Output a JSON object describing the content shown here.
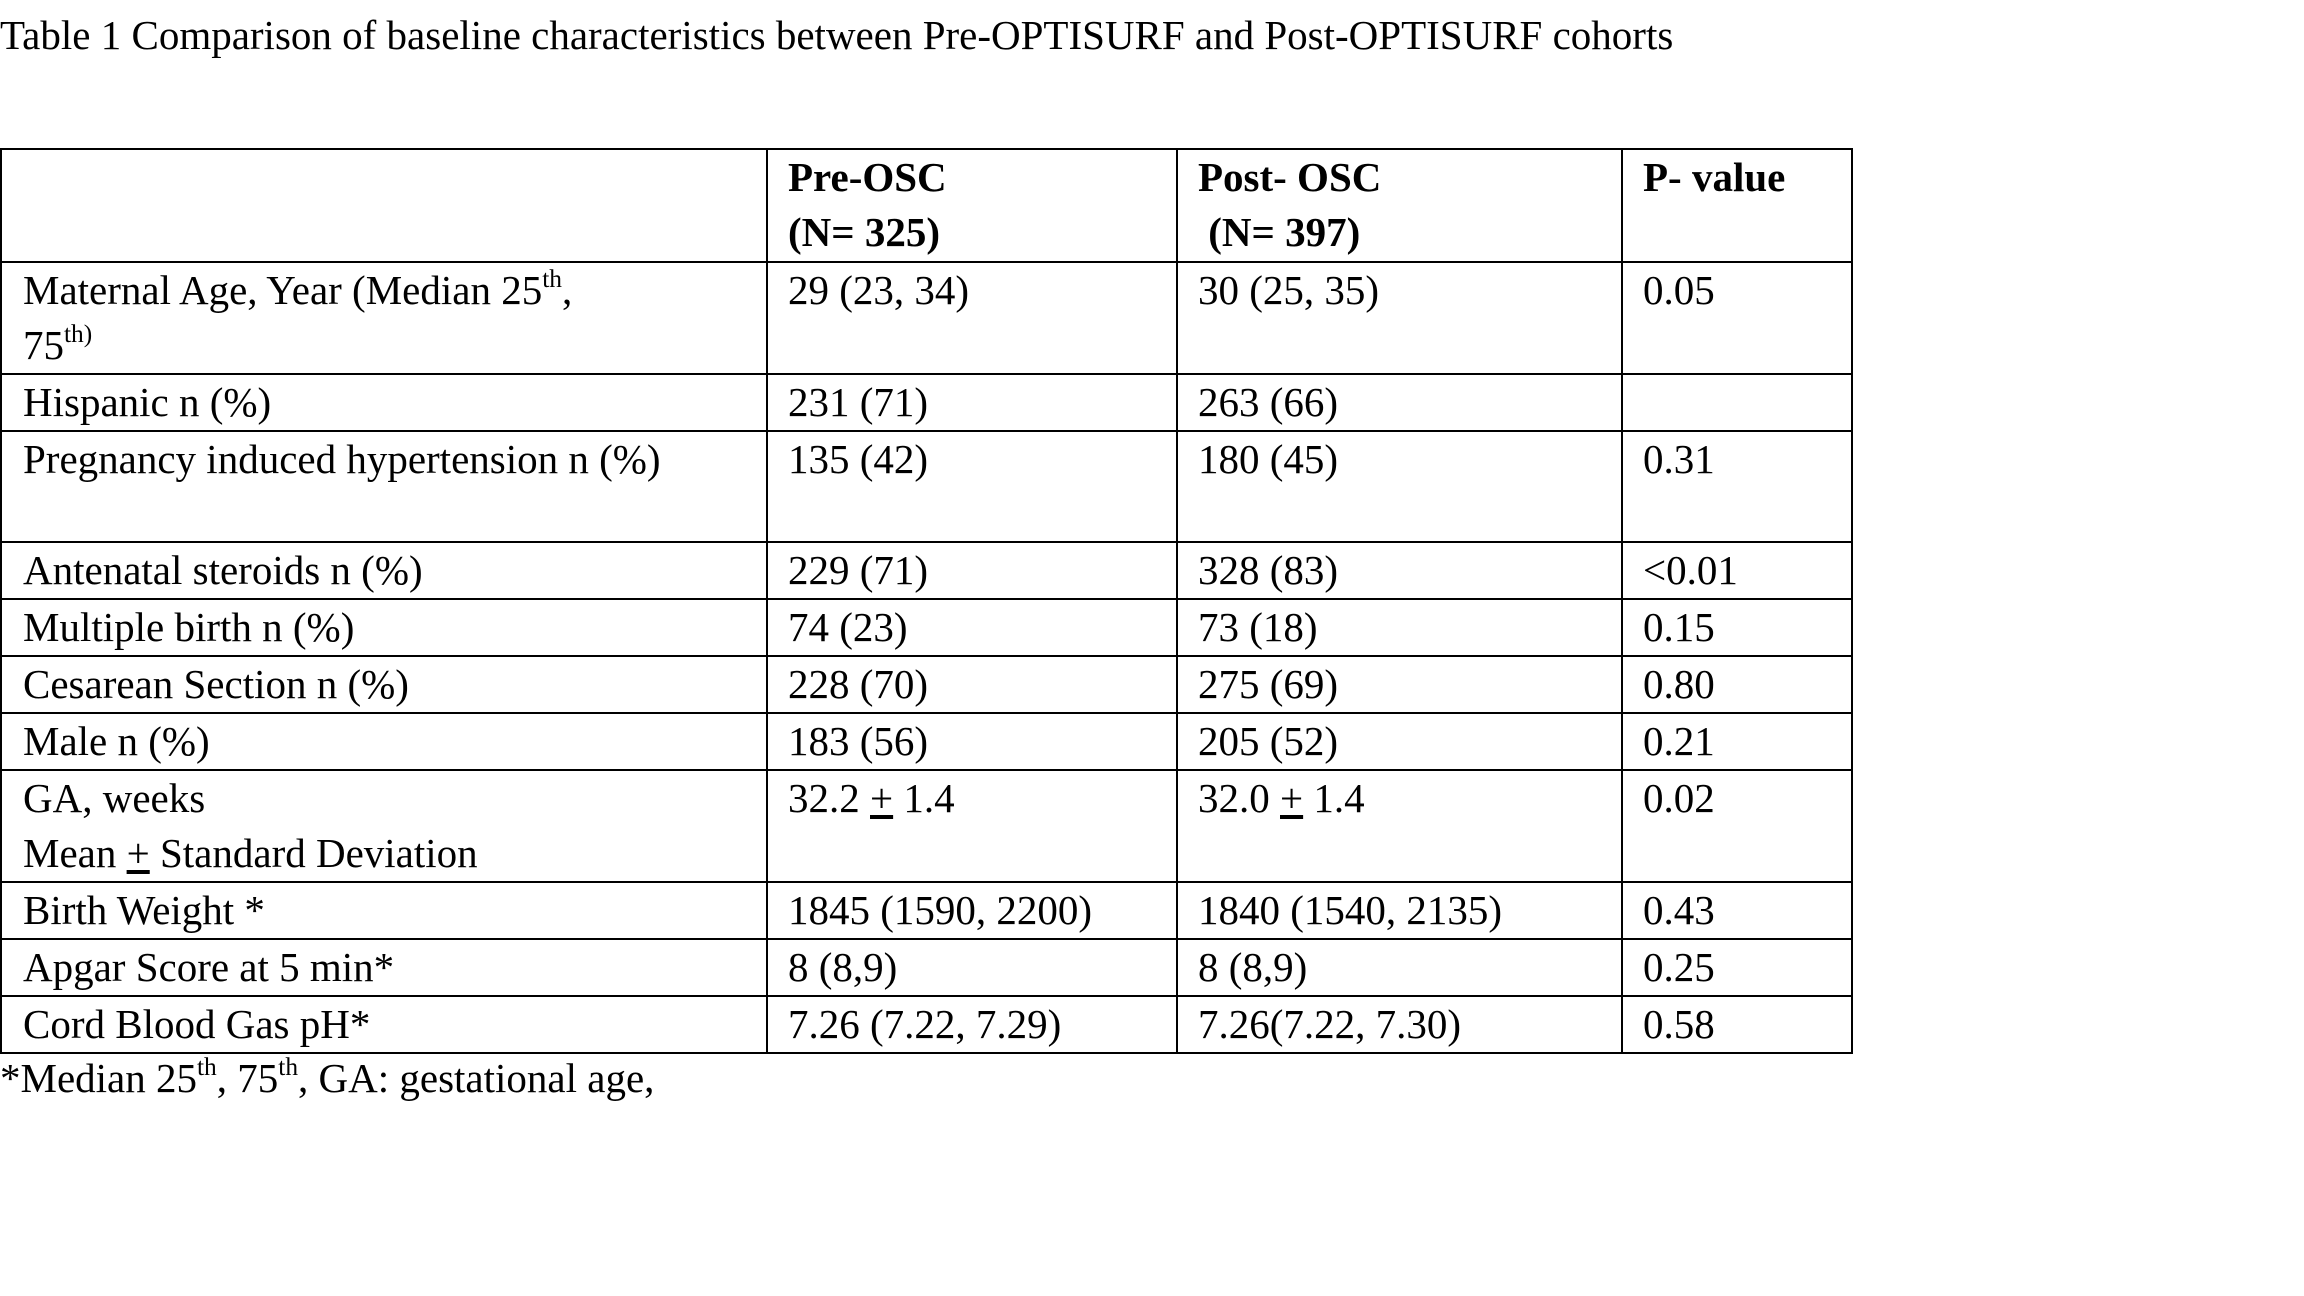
{
  "caption": "Table 1 Comparison of baseline characteristics between Pre-OPTISURF and Post-OPTISURF cohorts",
  "header": {
    "blank": "",
    "pre_line1": "Pre-OSC",
    "pre_line2": "(N= 325)",
    "post_line1": "Post- OSC",
    "post_line2": " (N= 397)",
    "pvalue": "P- value"
  },
  "rows": [
    {
      "label_a": "Maternal Age, Year (Median 25",
      "label_sup1": "th",
      "label_b": ",",
      "label_c": "75",
      "label_sup2": "th)",
      "pre": "29 (23, 34)",
      "post": "30 (25, 35)",
      "p": "0.05"
    },
    {
      "label": "Hispanic n (%)",
      "pre": "231 (71)",
      "post": "263 (66)",
      "p": ""
    },
    {
      "label": "Pregnancy induced hypertension n (%)",
      "pre": "135 (42)",
      "post": "180 (45)",
      "p": "0.31"
    },
    {
      "label": "Antenatal steroids n (%)",
      "pre": "229 (71)",
      "post": "328 (83)",
      "p": "<0.01"
    },
    {
      "label": "Multiple birth n (%)",
      "pre": "74 (23)",
      "post": "73 (18)",
      "p": "0.15"
    },
    {
      "label": "Cesarean Section n (%)",
      "pre": "228 (70)",
      "post": "275 (69)",
      "p": "0.80"
    },
    {
      "label": "Male n (%)",
      "pre": "183 (56)",
      "post": "205 (52)",
      "p": "0.21"
    },
    {
      "label_line1": "GA, weeks",
      "label_line2_a": "Mean ",
      "label_line2_pm": "+",
      "label_line2_b": " Standard Deviation",
      "pre_a": "32.2 ",
      "pre_pm": "+",
      "pre_b": " 1.4",
      "post_a": "32.0 ",
      "post_pm": "+",
      "post_b": " 1.4",
      "p": "0.02"
    },
    {
      "label": "Birth Weight *",
      "pre": "1845 (1590, 2200)",
      "post": "1840 (1540, 2135)",
      "p": "0.43"
    },
    {
      "label": "Apgar Score at 5 min*",
      "pre": "8 (8,9)",
      "post": "8 (8,9)",
      "p": "0.25"
    },
    {
      "label": "Cord Blood Gas pH*",
      "pre": "7.26 (7.22, 7.29)",
      "post": "7.26(7.22, 7.30)",
      "p": "0.58"
    }
  ],
  "footnote": {
    "a": "*Median 25",
    "sup1": "th",
    "b": ", 75",
    "sup2": "th",
    "c": ", GA: gestational age,"
  }
}
